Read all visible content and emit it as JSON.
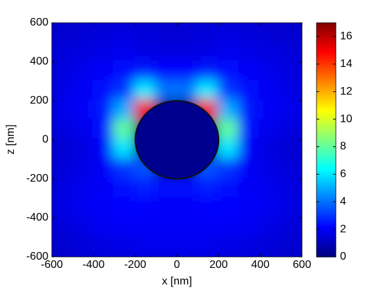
{
  "chart_data": {
    "type": "heatmap",
    "colormap": "jet",
    "x_label": "x [nm]",
    "y_label": "z [nm]",
    "x": [
      -550,
      -450,
      -350,
      -250,
      -150,
      -50,
      50,
      150,
      250,
      350,
      450,
      550
    ],
    "y": [
      550,
      450,
      350,
      250,
      150,
      50,
      -50,
      -150,
      -250,
      -350,
      -450,
      -550
    ],
    "values": [
      [
        1.3,
        1.4,
        1.5,
        1.6,
        1.5,
        1.4,
        1.4,
        1.5,
        1.6,
        1.5,
        1.4,
        1.3
      ],
      [
        1.5,
        1.6,
        1.7,
        1.8,
        1.7,
        1.6,
        1.6,
        1.7,
        1.8,
        1.7,
        1.6,
        1.5
      ],
      [
        1.6,
        1.8,
        2,
        2.3,
        2.5,
        2.2,
        2.2,
        2.5,
        2.3,
        2,
        1.8,
        1.6
      ],
      [
        1.7,
        1.9,
        2.3,
        3,
        6,
        4,
        4,
        6,
        3,
        2.3,
        1.9,
        1.7
      ],
      [
        1.8,
        2,
        2.5,
        5,
        15,
        0,
        0,
        15,
        5,
        2.5,
        2,
        1.8
      ],
      [
        1.6,
        1.8,
        2.3,
        8,
        0,
        0,
        0,
        0,
        8,
        2.3,
        1.8,
        1.6
      ],
      [
        1.4,
        1.6,
        2,
        6,
        0,
        0,
        0,
        0,
        6,
        2,
        1.6,
        1.4
      ],
      [
        1.5,
        1.7,
        2,
        3,
        3.5,
        0,
        0,
        3.5,
        3,
        2,
        1.7,
        1.5
      ],
      [
        1.6,
        1.8,
        2,
        2.3,
        2.6,
        2.4,
        2.4,
        2.6,
        2.3,
        2,
        1.8,
        1.6
      ],
      [
        1.7,
        1.9,
        2,
        2.1,
        2.1,
        2,
        2,
        2.1,
        2.1,
        2,
        1.9,
        1.7
      ],
      [
        1.5,
        1.7,
        1.9,
        2,
        2,
        2,
        2,
        2,
        2,
        1.9,
        1.7,
        1.5
      ],
      [
        1.3,
        1.5,
        1.6,
        1.7,
        1.8,
        1.8,
        1.8,
        1.8,
        1.7,
        1.6,
        1.5,
        1.3
      ]
    ],
    "xlim": [
      -600,
      600
    ],
    "ylim": [
      -600,
      600
    ],
    "xticks": [
      -600,
      -400,
      -200,
      0,
      200,
      400,
      600
    ],
    "yticks": [
      -600,
      -400,
      -200,
      0,
      200,
      400,
      600
    ],
    "clim": [
      0,
      17
    ],
    "cticks": [
      0,
      2,
      4,
      6,
      8,
      10,
      12,
      14,
      16
    ]
  }
}
